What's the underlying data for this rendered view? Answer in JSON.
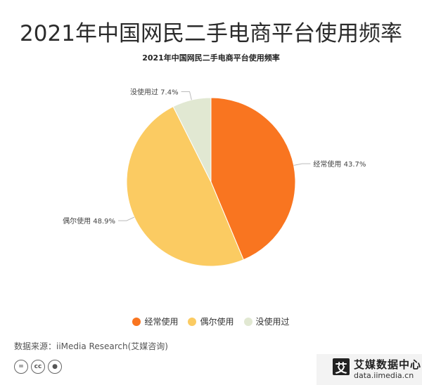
{
  "page": {
    "title": "2021年中国网民二手电商平台使用频率",
    "source": "数据来源：iiMedia Research(艾媒咨询)",
    "brand": {
      "name": "艾媒数据中心",
      "url": "data.iimedia.cn",
      "logo_char": "艾"
    },
    "license_icons": [
      "equals-icon",
      "cc-icon",
      "person-icon"
    ]
  },
  "chart_data": {
    "type": "pie",
    "title": "2021年中国网民二手电商平台使用频率",
    "categories": [
      "经常使用",
      "偶尔使用",
      "没使用过"
    ],
    "values": [
      43.7,
      48.9,
      7.4
    ],
    "unit": "%",
    "labels": [
      "经常使用 43.7%",
      "偶尔使用 48.9%",
      "没使用过 7.4%"
    ],
    "colors": [
      "#F97520",
      "#FBCB62",
      "#E1E8D2"
    ],
    "start_angle": "12 o'clock",
    "direction": "clockwise",
    "legend_position": "bottom-center"
  }
}
